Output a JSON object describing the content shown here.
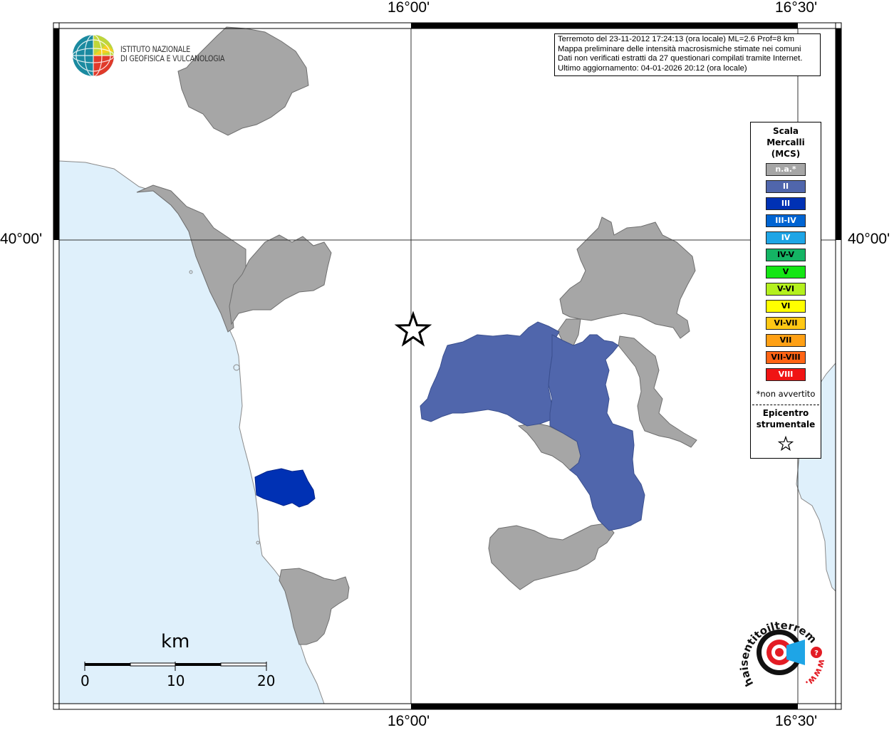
{
  "map": {
    "grid_labels": {
      "top_lon_1": "16°00'",
      "top_lon_2": "16°30'",
      "bottom_lon_1": "16°00'",
      "bottom_lon_2": "16°30'",
      "left_lat": "40°00'",
      "right_lat": "40°00'"
    },
    "colors": {
      "sea": "#dff0fb",
      "land": "#ffffff",
      "not_felt": "#a6a6a6",
      "intensity_II": "#5066ac",
      "intensity_III": "#0031b4"
    },
    "epicenter_symbol": "star-icon"
  },
  "info": {
    "line1": "Terremoto del 23-11-2012 17:24:13 (ora locale) ML=2.6 Prof=8 km",
    "line2": "Mappa preliminare delle intensità macrosismiche stimate nei comuni",
    "line3": "Dati non verificati estratti da 27 questionari compilati tramite Internet.",
    "line4": "Ultimo aggiornamento: 04-01-2026 20:12 (ora locale)"
  },
  "logo": {
    "line1": "ISTITUTO NAZIONALE",
    "line2": "DI GEOFISICA E VULCANOLOGIA"
  },
  "legend": {
    "title_line1": "Scala",
    "title_line2": "Mercalli",
    "title_line3": "(MCS)",
    "items": [
      {
        "label": "n.a.*",
        "color": "#a6a6a6",
        "text_color": "#ffffff"
      },
      {
        "label": "II",
        "color": "#5066ac",
        "text_color": "#ffffff"
      },
      {
        "label": "III",
        "color": "#0031b4",
        "text_color": "#ffffff"
      },
      {
        "label": "III-IV",
        "color": "#0064d2",
        "text_color": "#ffffff"
      },
      {
        "label": "IV",
        "color": "#1ea5e6",
        "text_color": "#ffffff"
      },
      {
        "label": "IV-V",
        "color": "#14b464",
        "text_color": "#000000"
      },
      {
        "label": "V",
        "color": "#14e614",
        "text_color": "#000000"
      },
      {
        "label": "V-VI",
        "color": "#b4f01e",
        "text_color": "#000000"
      },
      {
        "label": "VI",
        "color": "#ffff00",
        "text_color": "#000000"
      },
      {
        "label": "VI-VII",
        "color": "#ffc814",
        "text_color": "#000000"
      },
      {
        "label": "VII",
        "color": "#ffa014",
        "text_color": "#000000"
      },
      {
        "label": "VII-VIII",
        "color": "#ff6414",
        "text_color": "#000000"
      },
      {
        "label": "VIII",
        "color": "#f01414",
        "text_color": "#ffffff"
      }
    ],
    "note": "*non avvertito",
    "epicenter_line1": "Epicentro",
    "epicenter_line2": "strumentale"
  },
  "scale_bar": {
    "unit": "km",
    "ticks": [
      "0",
      "10",
      "20"
    ]
  },
  "watermark": {
    "text": "haisentitoilterremoto.it",
    "www": "www."
  }
}
